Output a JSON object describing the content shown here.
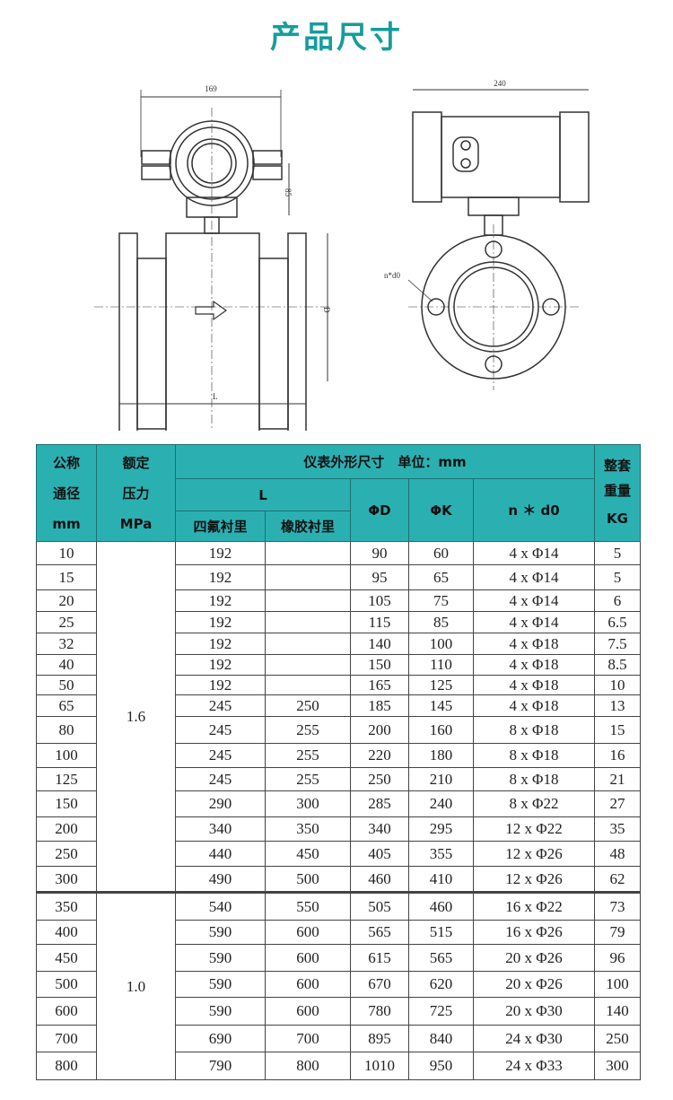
{
  "title": "产品尺寸",
  "drawing": {
    "dim_width_front": "169",
    "dim_height": "85",
    "dim_width_side": "240",
    "dim_D": "D",
    "dim_L": "L",
    "dim_hole": "n*d0"
  },
  "header": {
    "dn": [
      "公称",
      "通径",
      "mm"
    ],
    "pn": [
      "额定",
      "压力",
      "MPa"
    ],
    "dims": "仪表外形尺寸　单位：mm",
    "L": "L",
    "ptfe": "四氟衬里",
    "rubber": "橡胶衬里",
    "D": "ΦD",
    "K": "ΦK",
    "nd": "n ＊ d0",
    "weight": [
      "整套",
      "重量",
      "KG"
    ]
  },
  "pressure_groups": [
    "1.6",
    "1.0"
  ],
  "rows": [
    [
      "10",
      "192",
      "",
      "90",
      "60",
      "4 x Φ14",
      "5"
    ],
    [
      "15",
      "192",
      "",
      "95",
      "65",
      "4 x Φ14",
      "5"
    ],
    [
      "20",
      "192",
      "",
      "105",
      "75",
      "4 x Φ14",
      "6"
    ],
    [
      "25",
      "192",
      "",
      "115",
      "85",
      "4 x Φ14",
      "6.5"
    ],
    [
      "32",
      "192",
      "",
      "140",
      "100",
      "4 x Φ18",
      "7.5"
    ],
    [
      "40",
      "192",
      "",
      "150",
      "110",
      "4 x Φ18",
      "8.5"
    ],
    [
      "50",
      "192",
      "",
      "165",
      "125",
      "4 x Φ18",
      "10"
    ],
    [
      "65",
      "245",
      "250",
      "185",
      "145",
      "4 x Φ18",
      "13"
    ],
    [
      "80",
      "245",
      "255",
      "200",
      "160",
      "8 x Φ18",
      "15"
    ],
    [
      "100",
      "245",
      "255",
      "220",
      "180",
      "8 x Φ18",
      "16"
    ],
    [
      "125",
      "245",
      "255",
      "250",
      "210",
      "8 x Φ18",
      "21"
    ],
    [
      "150",
      "290",
      "300",
      "285",
      "240",
      "8 x Φ22",
      "27"
    ],
    [
      "200",
      "340",
      "350",
      "340",
      "295",
      "12 x Φ22",
      "35"
    ],
    [
      "250",
      "440",
      "450",
      "405",
      "355",
      "12 x Φ26",
      "48"
    ],
    [
      "300",
      "490",
      "500",
      "460",
      "410",
      "12 x Φ26",
      "62"
    ],
    [
      "350",
      "540",
      "550",
      "505",
      "460",
      "16 x Φ22",
      "73"
    ],
    [
      "400",
      "590",
      "600",
      "565",
      "515",
      "16 x Φ26",
      "79"
    ],
    [
      "450",
      "590",
      "600",
      "615",
      "565",
      "20 x Φ26",
      "96"
    ],
    [
      "500",
      "590",
      "600",
      "670",
      "620",
      "20 x Φ26",
      "100"
    ],
    [
      "600",
      "590",
      "600",
      "780",
      "725",
      "20 x Φ30",
      "140"
    ],
    [
      "700",
      "690",
      "700",
      "895",
      "840",
      "24 x Φ30",
      "250"
    ],
    [
      "800",
      "790",
      "800",
      "1010",
      "950",
      "24 x Φ33",
      "300"
    ]
  ]
}
